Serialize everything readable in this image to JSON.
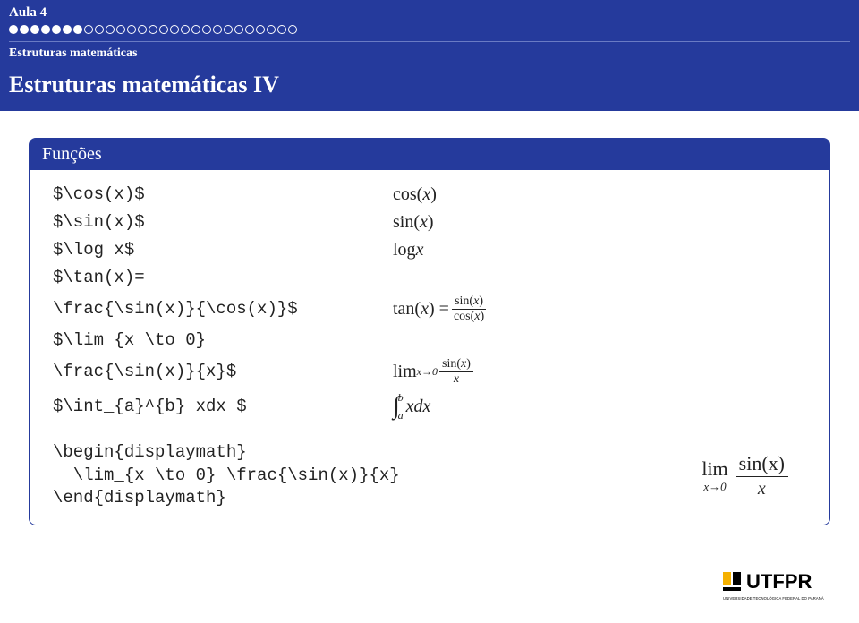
{
  "header": {
    "lecture": "Aula 4",
    "subtitle": "Estruturas matemáticas",
    "progress_total": 27,
    "progress_filled": 7
  },
  "title": "Estruturas matemáticas IV",
  "panel": {
    "head": "Funções",
    "rows": [
      {
        "lhs": "$\\cos(x)$",
        "rhs_type": "cos"
      },
      {
        "lhs": "$\\sin(x)$",
        "rhs_type": "sin"
      },
      {
        "lhs": "$\\log x$",
        "rhs_type": "log"
      },
      {
        "lhs": "$\\tan(x)=",
        "rhs_type": "none"
      },
      {
        "lhs": "\\frac{\\sin(x)}{\\cos(x)}$",
        "rhs_type": "tan_frac"
      },
      {
        "lhs": "$\\lim_{x \\to 0}",
        "rhs_type": "none"
      },
      {
        "lhs": "\\frac{\\sin(x)}{x}$",
        "rhs_type": "lim_frac"
      },
      {
        "lhs": "$\\int_{a}^{b} xdx $",
        "rhs_type": "integral"
      }
    ],
    "display_src": "\\begin{displaymath}\n  \\lim_{x \\to 0} \\frac{\\sin(x)}{x}\n\\end{displaymath}",
    "display_rhs": {
      "lim": "lim",
      "to": "x→0",
      "num": "sin(x)",
      "den": "x"
    }
  },
  "math_text": {
    "cos": "cos(",
    "sin": "sin(",
    "log": "log ",
    "tan": "tan(",
    "x": "x",
    "close": ")",
    "eq": " = ",
    "lim": "lim",
    "sub_x0": "x→0",
    "a": "a",
    "b": "b",
    "xdx": "xdx",
    "int": "∫"
  },
  "logo": {
    "name": "UTFPR",
    "tagline": "UNIVERSIDADE TECNOLÓGICA FEDERAL DO PARANÁ",
    "yellow": "#f5b100",
    "black": "#000000"
  },
  "colors": {
    "brand": "#253a9c",
    "text": "#222222",
    "bg": "#ffffff"
  }
}
